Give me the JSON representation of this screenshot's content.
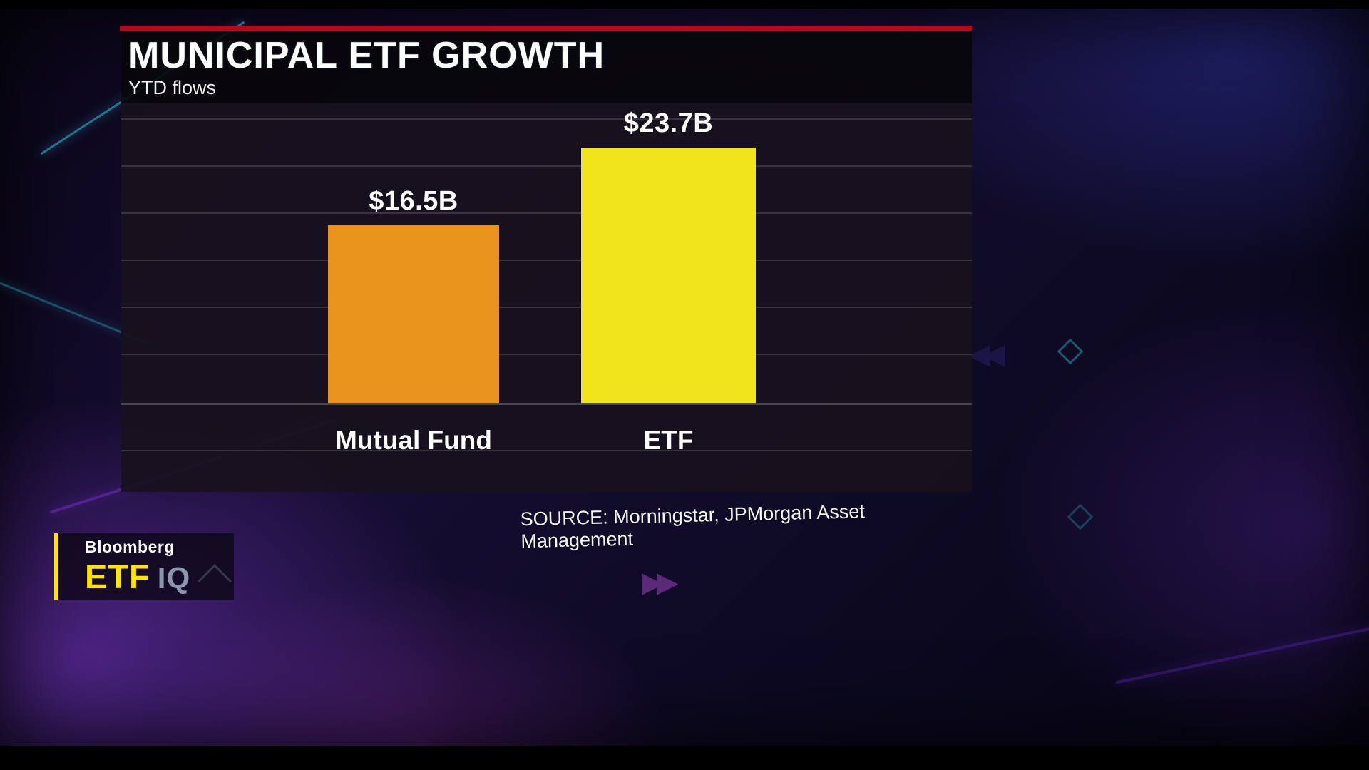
{
  "chart_data": {
    "type": "bar",
    "title": "MUNICIPAL ETF GROWTH",
    "subtitle": "YTD flows",
    "categories": [
      "Mutual Fund",
      "ETF"
    ],
    "values": [
      16.5,
      23.7
    ],
    "value_labels": [
      "$16.5B",
      "$23.7B"
    ],
    "bar_colors": [
      "#e8941c",
      "#f0e51a"
    ],
    "ylim": [
      0,
      27.8
    ],
    "grid": true,
    "legend": false,
    "source": "SOURCE: Morningstar, JPMorgan Asset Management"
  },
  "logo": {
    "brand": "Bloomberg",
    "show_etf": "ETF",
    "show_iq": "IQ"
  }
}
